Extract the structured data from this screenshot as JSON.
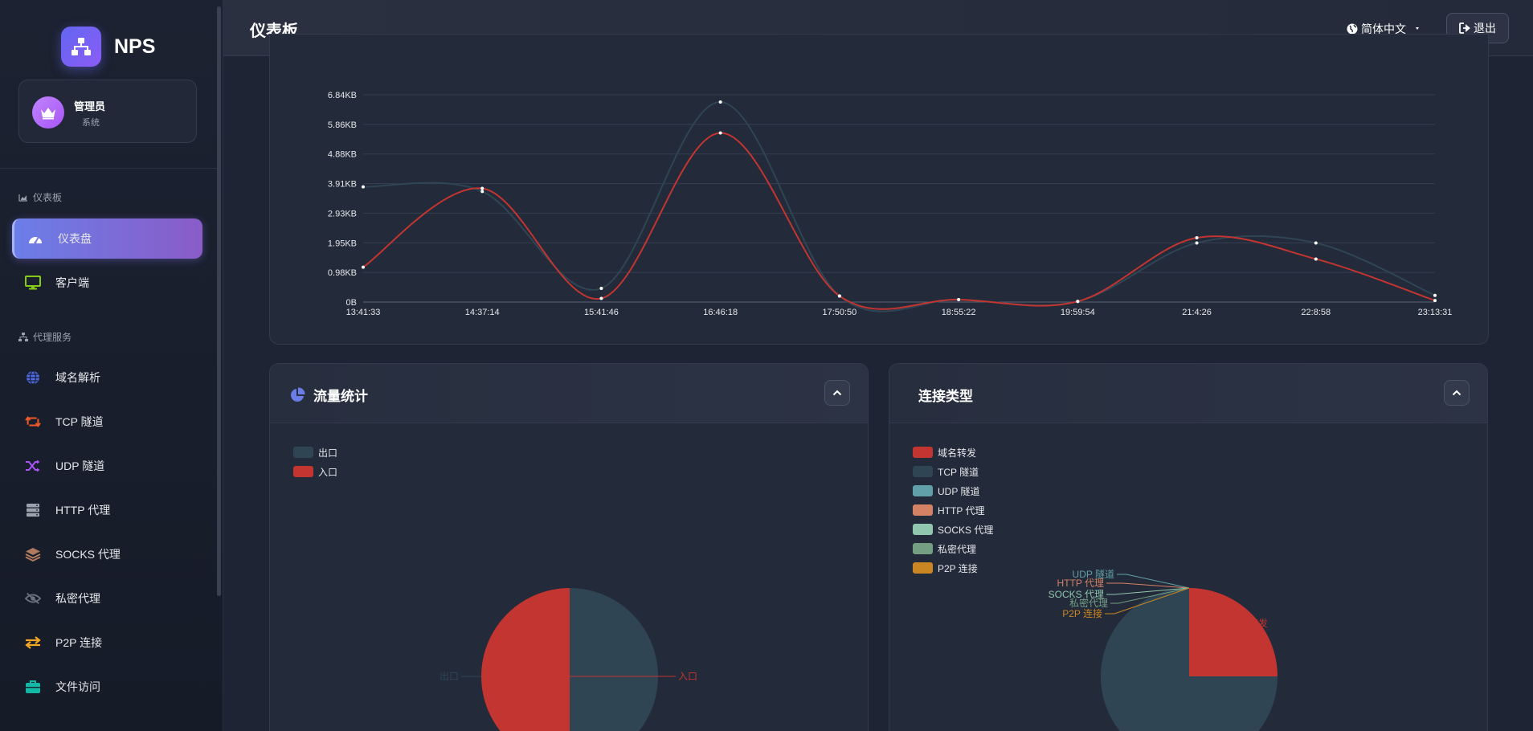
{
  "brand": {
    "name": "NPS"
  },
  "user": {
    "name": "管理员",
    "role": "系统"
  },
  "sidebar": {
    "section_dashboard": "仪表板",
    "section_proxy": "代理服务",
    "items": [
      {
        "label": "仪表盘",
        "icon": "gauge-icon",
        "color": "#ffffff"
      },
      {
        "label": "客户端",
        "icon": "monitor-icon",
        "color": "#84cc16"
      },
      {
        "label": "域名解析",
        "icon": "globe-icon",
        "color": "#4f6bed"
      },
      {
        "label": "TCP 隧道",
        "icon": "retweet-icon",
        "color": "#f05a28"
      },
      {
        "label": "UDP 隧道",
        "icon": "shuffle-icon",
        "color": "#a855f7"
      },
      {
        "label": "HTTP 代理",
        "icon": "server-icon",
        "color": "#9ca3af"
      },
      {
        "label": "SOCKS 代理",
        "icon": "layers-icon",
        "color": "#b07a5e"
      },
      {
        "label": "私密代理",
        "icon": "eye-slash-icon",
        "color": "#6b7280"
      },
      {
        "label": "P2P 连接",
        "icon": "exchange-icon",
        "color": "#f5a623"
      },
      {
        "label": "文件访问",
        "icon": "briefcase-icon",
        "color": "#14b8a6"
      }
    ]
  },
  "header": {
    "title": "仪表板",
    "language": "简体中文",
    "logout": "退出"
  },
  "traffic_card": {
    "title": "流量统计"
  },
  "conn_card": {
    "title": "连接类型"
  },
  "chart_data": [
    {
      "type": "line",
      "x": [
        "13:41:33",
        "14:37:14",
        "15:41:46",
        "16:46:18",
        "17:50:50",
        "18:55:22",
        "19:59:54",
        "21:4:26",
        "22:8:58",
        "23:13:31"
      ],
      "y_ticks": [
        "0B",
        "0.98KB",
        "1.95KB",
        "2.93KB",
        "3.91KB",
        "4.88KB",
        "5.86KB",
        "6.84KB"
      ],
      "ylim": [
        0,
        6.84
      ],
      "grid": true,
      "series": [
        {
          "name": "出口",
          "color": "#2f4554",
          "values": [
            3.8,
            3.65,
            0.45,
            6.6,
            0.2,
            0.08,
            0.02,
            1.95,
            1.95,
            0.22
          ]
        },
        {
          "name": "入口",
          "color": "#c23531",
          "values": [
            1.15,
            3.75,
            0.12,
            5.58,
            0.2,
            0.08,
            0.02,
            2.12,
            1.42,
            0.05
          ]
        }
      ]
    },
    {
      "type": "pie",
      "title": "流量统计",
      "legend_position": "top-left",
      "slices": [
        {
          "name": "出口",
          "value": 50,
          "color": "#2f4554"
        },
        {
          "name": "入口",
          "value": 50,
          "color": "#c23531"
        }
      ]
    },
    {
      "type": "pie",
      "title": "连接类型",
      "legend_position": "top-left",
      "slices": [
        {
          "name": "域名转发",
          "value": 25,
          "color": "#c23531"
        },
        {
          "name": "TCP 隧道",
          "value": 75,
          "color": "#2f4554"
        },
        {
          "name": "UDP 隧道",
          "value": 0,
          "color": "#61a0a8"
        },
        {
          "name": "HTTP 代理",
          "value": 0,
          "color": "#d48265"
        },
        {
          "name": "SOCKS 代理",
          "value": 0,
          "color": "#91c7ae"
        },
        {
          "name": "私密代理",
          "value": 0,
          "color": "#749f83"
        },
        {
          "name": "P2P 连接",
          "value": 0,
          "color": "#ca8622"
        }
      ]
    }
  ]
}
